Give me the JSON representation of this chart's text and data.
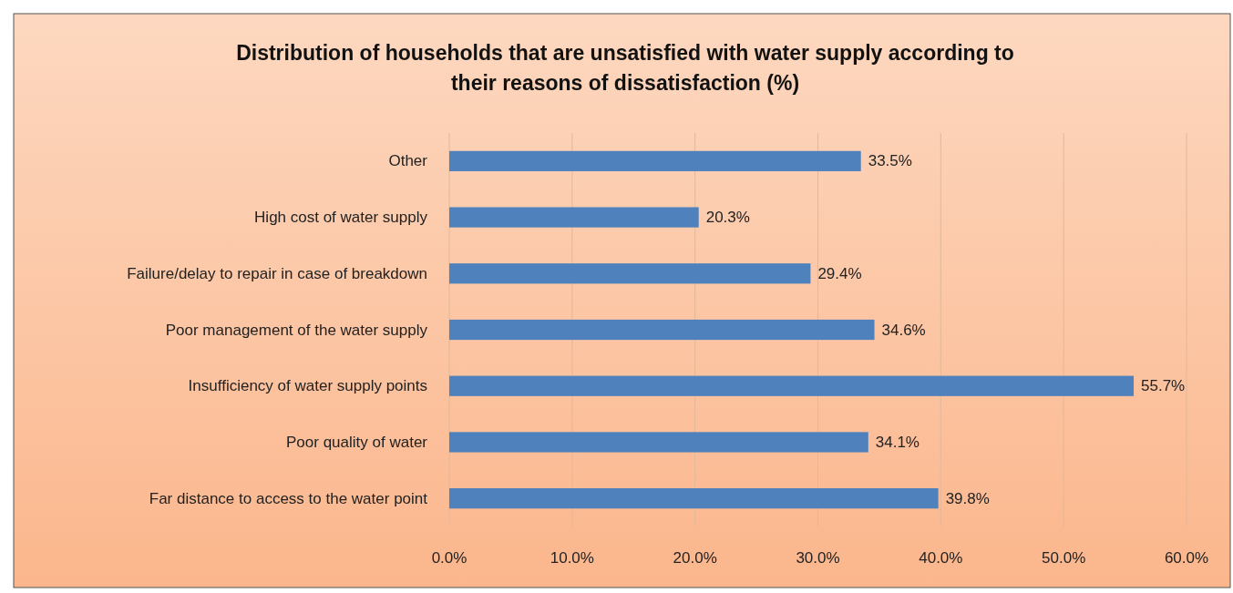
{
  "chart_data": {
    "type": "bar",
    "orientation": "horizontal",
    "title": "Distribution of households that are unsatisfied with water supply according to their reasons of dissatisfaction (%)",
    "categories": [
      "Other",
      "High cost of water supply",
      "Failure/delay to repair in case of breakdown",
      "Poor management of the water supply",
      "Insufficiency of water supply points",
      "Poor quality of water",
      "Far distance to access to the water point"
    ],
    "values": [
      33.5,
      20.3,
      29.4,
      34.6,
      55.7,
      34.1,
      39.8
    ],
    "value_labels": [
      "33.5%",
      "20.3%",
      "29.4%",
      "34.6%",
      "55.7%",
      "34.1%",
      "39.8%"
    ],
    "color": "#4f81bd",
    "xlim": [
      0,
      60
    ],
    "xticks": [
      {
        "value": 0,
        "label": "0.0%"
      },
      {
        "value": 10,
        "label": "10.0%"
      },
      {
        "value": 20,
        "label": "20.0%"
      },
      {
        "value": 30,
        "label": "30.0%"
      },
      {
        "value": 40,
        "label": "40.0%"
      },
      {
        "value": 50,
        "label": "50.0%"
      },
      {
        "value": 60,
        "label": "60.0%"
      }
    ],
    "grid": "x"
  }
}
